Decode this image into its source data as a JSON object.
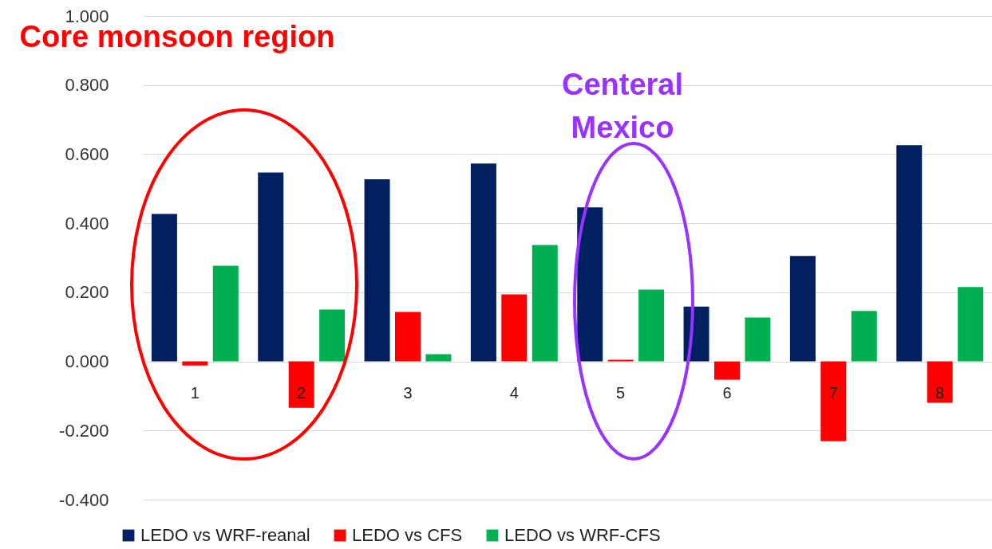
{
  "chart_data": {
    "type": "bar",
    "categories": [
      "1",
      "2",
      "3",
      "4",
      "5",
      "6",
      "7",
      "8"
    ],
    "series": [
      {
        "name": "LEDO vs WRF-reanal",
        "color": "#002060",
        "values": [
          0.427,
          0.547,
          0.527,
          0.573,
          0.446,
          0.159,
          0.305,
          0.626
        ]
      },
      {
        "name": "LEDO vs CFS",
        "color": "#ff0000",
        "values": [
          -0.012,
          -0.134,
          0.143,
          0.194,
          0.005,
          -0.053,
          -0.231,
          -0.12
        ]
      },
      {
        "name": "LEDO vs WRF-CFS",
        "color": "#00b050",
        "values": [
          0.277,
          0.15,
          0.021,
          0.337,
          0.208,
          0.127,
          0.146,
          0.215
        ]
      }
    ],
    "ylim": [
      -0.4,
      1.0
    ],
    "yticks": [
      {
        "value": -0.4,
        "label": "-0.400"
      },
      {
        "value": -0.2,
        "label": "-0.200"
      },
      {
        "value": 0,
        "label": "0.000"
      },
      {
        "value": 0.2,
        "label": "0.200"
      },
      {
        "value": 0.4,
        "label": "0.400"
      },
      {
        "value": 0.6,
        "label": "0.600"
      },
      {
        "value": 0.8,
        "label": "0.800"
      },
      {
        "value": 1.0,
        "label": "1.000"
      }
    ],
    "grid": "y",
    "legend": "bottom",
    "annotations": [
      "Core monsoon region",
      "Centeral\nMexico"
    ]
  }
}
